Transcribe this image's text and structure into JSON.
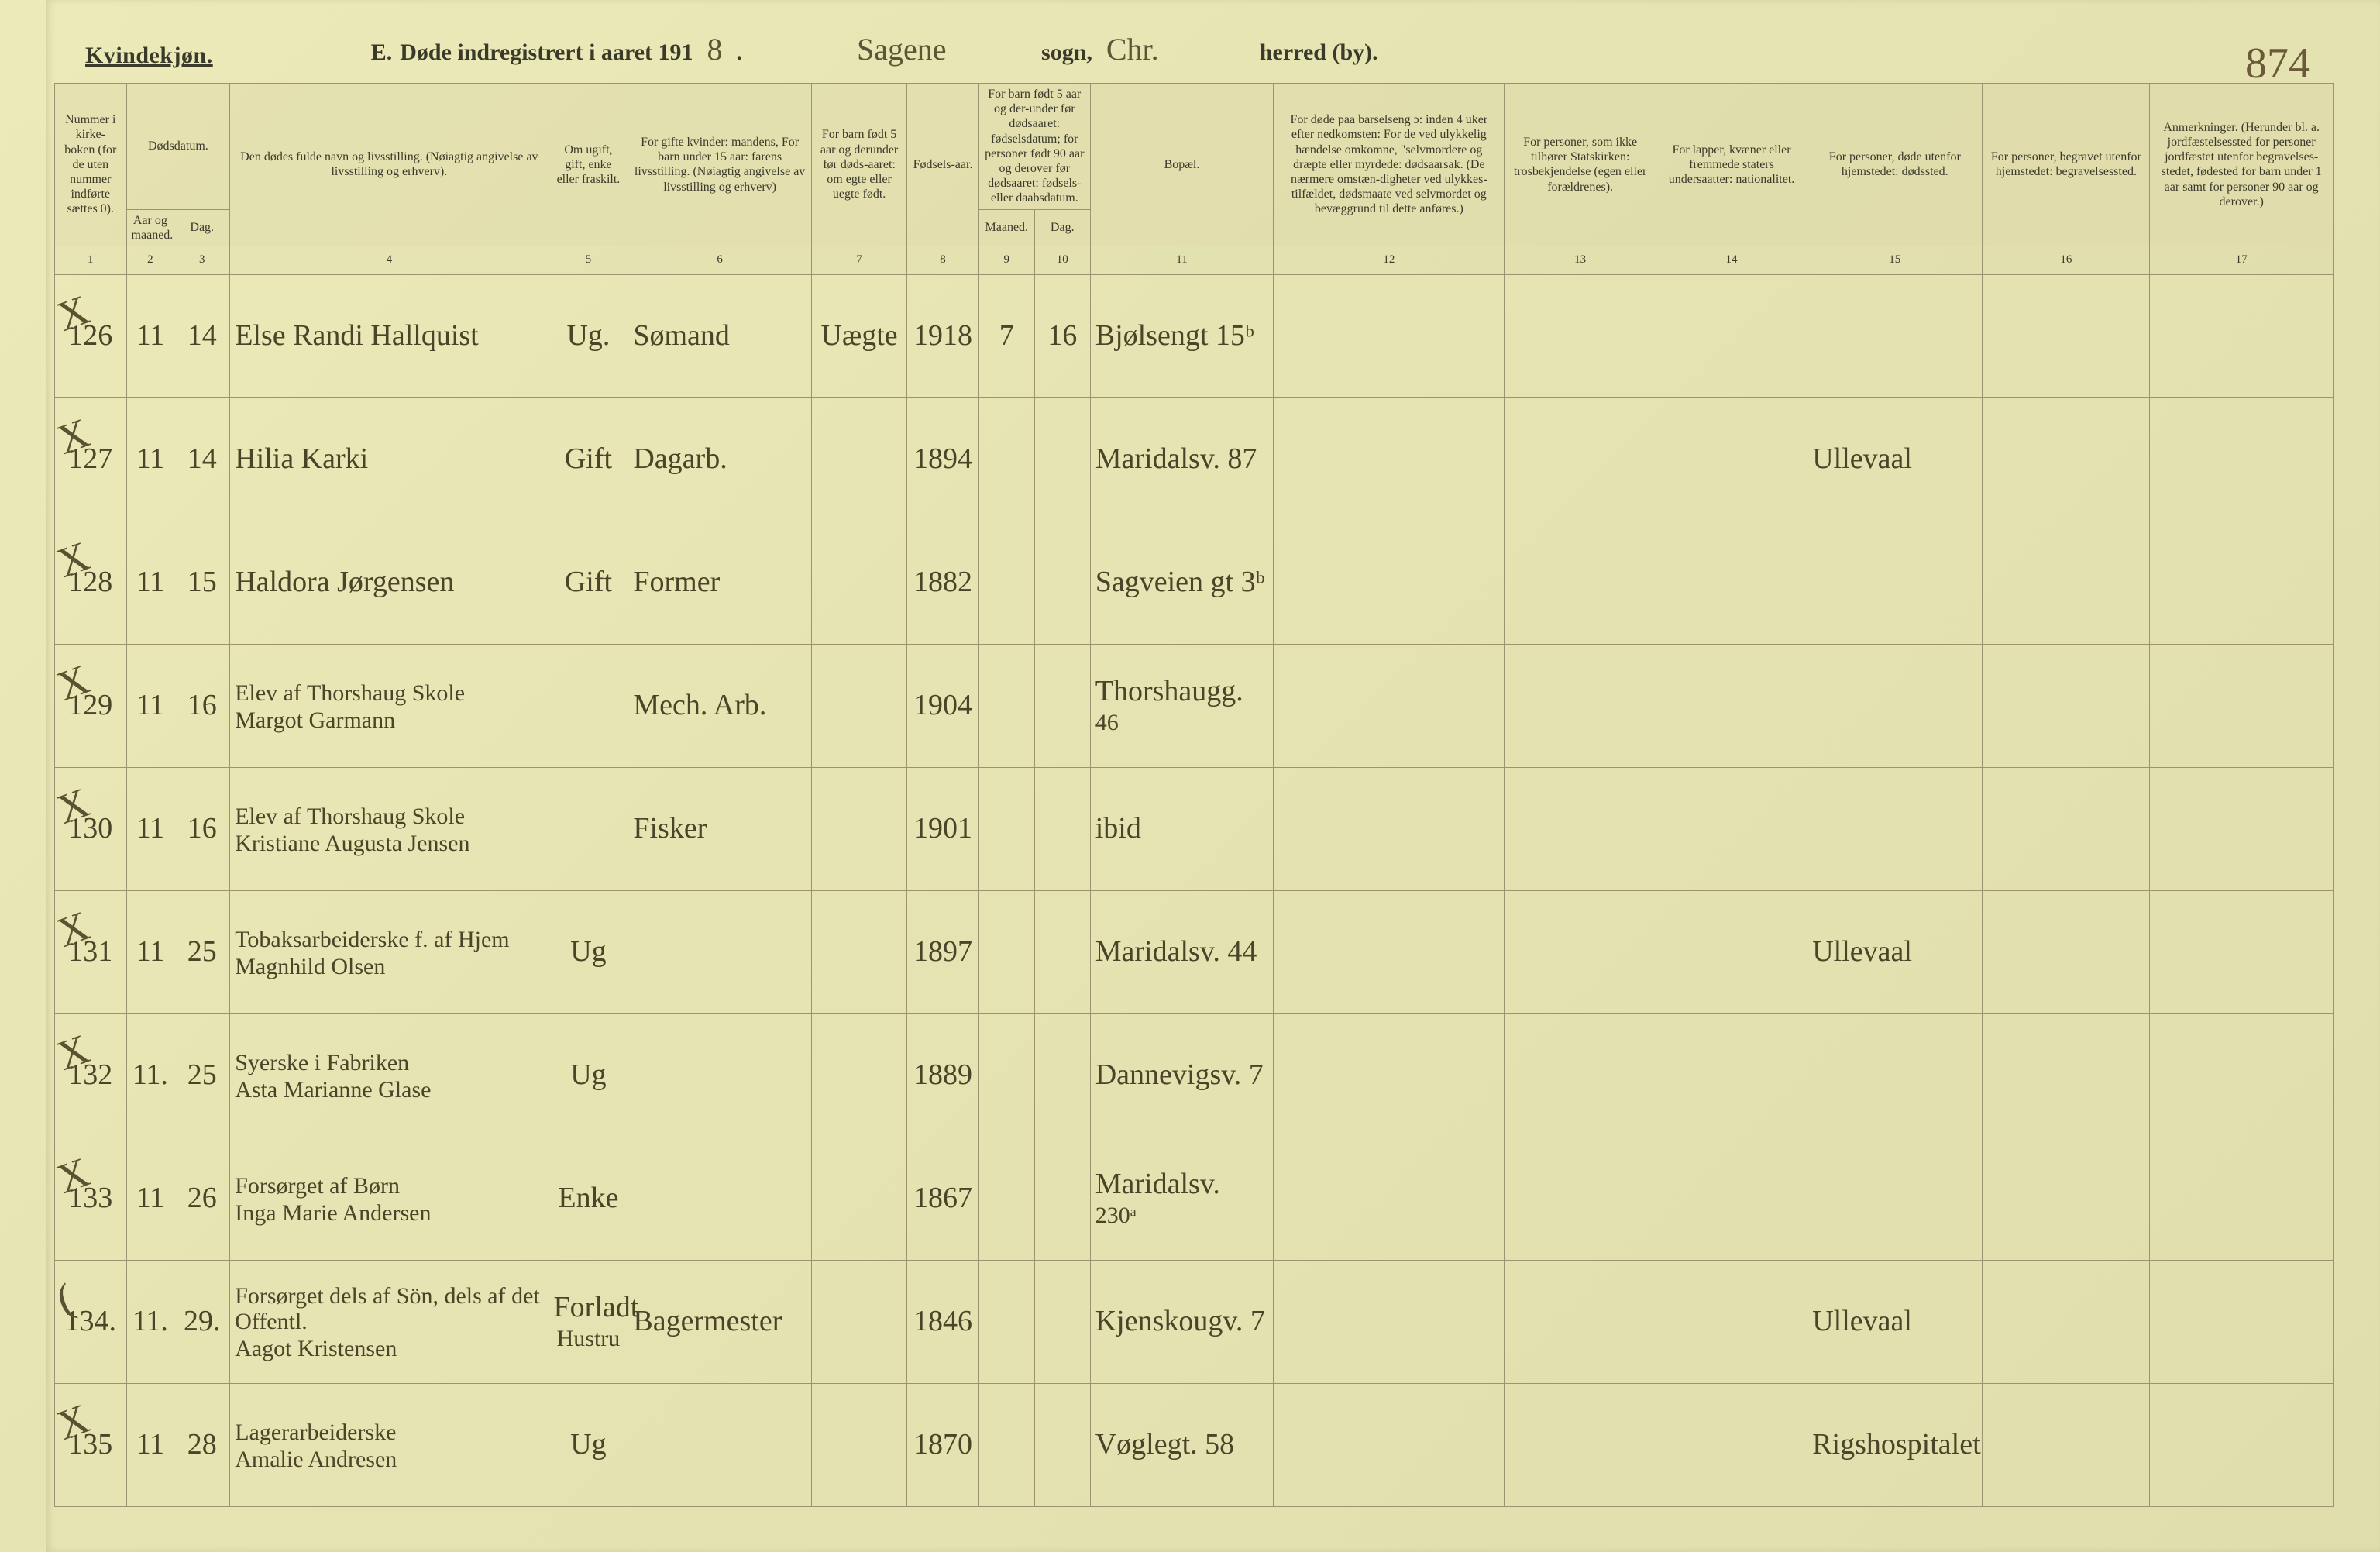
{
  "header": {
    "gender_label": "Kvindekjøn.",
    "section_letter": "E.",
    "title_prefix": "Døde indregistrert i aaret 191",
    "year_suffix": "8",
    "sogn_value": "Sagene",
    "sogn_label": "sogn,",
    "herred_value": "Chr.",
    "herred_label": "herred (by).",
    "page_number": "874"
  },
  "columns": {
    "c1": "Nummer i kirke-\nboken\n(for de uten nummer indførte sættes 0).",
    "c2_3_group": "Dødsdatum.",
    "c2": "Aar og maaned.",
    "c3": "Dag.",
    "c4": "Den dødes fulde navn og livsstilling.\n(Nøiagtig angivelse av livsstilling og erhverv).",
    "c5": "Om ugift, gift, enke eller fraskilt.",
    "c6": "For gifte kvinder:\nmandens,\nFor barn under 15 aar:\nfarens livsstilling.\n(Nøiagtig angivelse av livsstilling og erhverv)",
    "c7": "For barn født 5 aar og derunder før døds-aaret: om egte eller uegte født.",
    "c8": "Fødsels-aar.",
    "c9_10_group": "For barn født 5 aar og der-under før dødsaaret: fødselsdatum; for personer født 90 aar og derover før dødsaaret: fødsels- eller daabsdatum.",
    "c9": "Maaned.",
    "c10": "Dag.",
    "c11": "Bopæl.",
    "c12": "For døde paa barselseng ɔ: inden 4 uker efter nedkomsten:\nFor de ved ulykkelig hændelse omkomne, \"selvmordere og dræpte eller myrdede: dødsaarsak.\n(De nærmere omstæn-digheter ved ulykkes-tilfældet, dødsmaate ved selvmordet og bevæggrund til dette anføres.)",
    "c13": "For personer, som ikke tilhører Statskirken:\ntrosbekjendelse\n(egen eller forældrenes).",
    "c14": "For lapper, kvæner eller fremmede staters undersaatter:\nnationalitet.",
    "c15": "For personer, døde utenfor hjemstedet:\ndødssted.",
    "c16": "For personer, begravet utenfor hjemstedet:\nbegravelsessted.",
    "c17": "Anmerkninger.\n(Herunder bl. a. jordfæstelsessted for personer jordfæstet utenfor begravelses-stedet, fødested for barn under 1 aar samt for personer 90 aar og derover.)"
  },
  "colnums": [
    "1",
    "2",
    "3",
    "4",
    "5",
    "6",
    "7",
    "8",
    "9",
    "10",
    "11",
    "12",
    "13",
    "14",
    "15",
    "16",
    "17"
  ],
  "rows": [
    {
      "strike": "X",
      "num": "126",
      "mon": "11",
      "day": "14",
      "name": "Else Randi Hallquist",
      "stand": "Ug.",
      "far": "Sømand",
      "egte": "Uægte",
      "faar": "1918",
      "fm": "7",
      "fd": "16",
      "bopel": "Bjølsengt 15ᵇ",
      "c12": "",
      "c13": "",
      "c14": "",
      "c15": "",
      "c16": "",
      "c17": ""
    },
    {
      "strike": "X",
      "num": "127",
      "mon": "11",
      "day": "14",
      "name": "Hilia Karki",
      "stand": "Gift",
      "far": "Dagarb.",
      "egte": "",
      "faar": "1894",
      "fm": "",
      "fd": "",
      "bopel": "Maridalsv. 87",
      "c12": "",
      "c13": "",
      "c14": "",
      "c15": "Ullevaal",
      "c16": "",
      "c17": ""
    },
    {
      "strike": "X",
      "num": "128",
      "mon": "11",
      "day": "15",
      "name": "Haldora Jørgensen",
      "stand": "Gift",
      "far": "Former",
      "egte": "",
      "faar": "1882",
      "fm": "",
      "fd": "",
      "bopel": "Sagveien gt 3ᵇ",
      "c12": "",
      "c13": "",
      "c14": "",
      "c15": "",
      "c16": "",
      "c17": ""
    },
    {
      "strike": "X",
      "num": "129",
      "mon": "11",
      "day": "16",
      "name": "Elev af Thorshaug Skole\nMargot Garmann",
      "stand": "",
      "far": "Mech. Arb.",
      "egte": "",
      "faar": "1904",
      "fm": "",
      "fd": "",
      "bopel": "Thorshaugg.\n46",
      "c12": "",
      "c13": "",
      "c14": "",
      "c15": "",
      "c16": "",
      "c17": ""
    },
    {
      "strike": "X",
      "num": "130",
      "mon": "11",
      "day": "16",
      "name": "Elev af Thorshaug Skole\nKristiane Augusta Jensen",
      "stand": "",
      "far": "Fisker",
      "egte": "",
      "faar": "1901",
      "fm": "",
      "fd": "",
      "bopel": "ibid",
      "c12": "",
      "c13": "",
      "c14": "",
      "c15": "",
      "c16": "",
      "c17": ""
    },
    {
      "strike": "X",
      "num": "131",
      "mon": "11",
      "day": "25",
      "name": "Tobaksarbeiderske f. af Hjem\nMagnhild Olsen",
      "stand": "Ug",
      "far": "",
      "egte": "",
      "faar": "1897",
      "fm": "",
      "fd": "",
      "bopel": "Maridalsv. 44",
      "c12": "",
      "c13": "",
      "c14": "",
      "c15": "Ullevaal",
      "c16": "",
      "c17": ""
    },
    {
      "strike": "X",
      "num": "132",
      "mon": "11.",
      "day": "25",
      "name": "Syerske i Fabriken\nAsta Marianne Glase",
      "stand": "Ug",
      "far": "",
      "egte": "",
      "faar": "1889",
      "fm": "",
      "fd": "",
      "bopel": "Dannevigsv. 7",
      "c12": "",
      "c13": "",
      "c14": "",
      "c15": "",
      "c16": "",
      "c17": ""
    },
    {
      "strike": "X",
      "num": "133",
      "mon": "11",
      "day": "26",
      "name": "Forsørget af Børn\nInga Marie Andersen",
      "stand": "Enke",
      "far": "",
      "egte": "",
      "faar": "1867",
      "fm": "",
      "fd": "",
      "bopel": "Maridalsv.\n230ᵃ",
      "c12": "",
      "c13": "",
      "c14": "",
      "c15": "",
      "c16": "",
      "c17": ""
    },
    {
      "strike": "(",
      "num": "134.",
      "mon": "11.",
      "day": "29.",
      "name": "Forsørget dels af Sön, dels af det Offentl.\nAagot Kristensen",
      "stand": "Forladt\nHustru",
      "far": "Bagermester",
      "egte": "",
      "faar": "1846",
      "fm": "",
      "fd": "",
      "bopel": "Kjenskougv. 7",
      "c12": "",
      "c13": "",
      "c14": "",
      "c15": "Ullevaal",
      "c16": "",
      "c17": ""
    },
    {
      "strike": "X",
      "num": "135",
      "mon": "11",
      "day": "28",
      "name": "Lagerarbeiderske\nAmalie Andresen",
      "stand": "Ug",
      "far": "",
      "egte": "",
      "faar": "1870",
      "fm": "",
      "fd": "",
      "bopel": "Vøglegt. 58",
      "c12": "",
      "c13": "",
      "c14": "",
      "c15": "Rigshospitalet",
      "c16": "",
      "c17": ""
    }
  ],
  "colors": {
    "paper": "#e8e6b8",
    "ink": "#4a4428",
    "rule": "#9a9470"
  }
}
